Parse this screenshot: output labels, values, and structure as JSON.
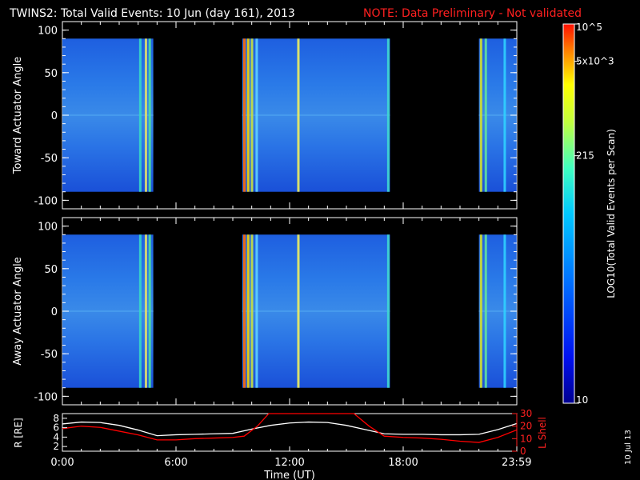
{
  "title": "TWINS2: Total Valid Events: 10 Jun (day 161), 2013",
  "note": "NOTE: Data Preliminary - Not validated",
  "date_stamp": "10 Jul 13",
  "colorbar": {
    "label": "LOG10(Total Valid Events per Scan)",
    "tick_labels": [
      "10",
      "215",
      "5x10^3",
      "10^5"
    ]
  },
  "chart_data": [
    {
      "type": "heatmap",
      "ylabel": "Toward Actuator Angle",
      "ylim": [
        -110,
        110
      ],
      "yticks": [
        100,
        50,
        0,
        -50,
        -100
      ],
      "xlim_hours": [
        0,
        24
      ],
      "angle_range": [
        -90,
        90
      ],
      "data_intervals_hours": [
        [
          0,
          4.8
        ],
        [
          9.5,
          17.3
        ],
        [
          22.0,
          23.99
        ]
      ],
      "bright_bands_hours": [
        {
          "x": 4.05,
          "color": "#36d6c8"
        },
        {
          "x": 4.35,
          "color": "#e0e06a"
        },
        {
          "x": 4.55,
          "color": "#50e0a0"
        },
        {
          "x": 9.55,
          "color": "#ff6a00"
        },
        {
          "x": 9.75,
          "color": "#f4d400"
        },
        {
          "x": 9.95,
          "color": "#c8e040"
        },
        {
          "x": 10.2,
          "color": "#60d0ff"
        },
        {
          "x": 12.4,
          "color": "#f0f060"
        },
        {
          "x": 17.15,
          "color": "#40d8d0"
        },
        {
          "x": 22.05,
          "color": "#d0e030"
        },
        {
          "x": 22.3,
          "color": "#60e0a0"
        },
        {
          "x": 23.3,
          "color": "#30d0ff"
        }
      ]
    },
    {
      "type": "heatmap",
      "ylabel": "Away Actuator Angle",
      "ylim": [
        -110,
        110
      ],
      "yticks": [
        100,
        50,
        0,
        -50,
        -100
      ],
      "xlim_hours": [
        0,
        24
      ],
      "angle_range": [
        -90,
        90
      ],
      "data_intervals_hours": [
        [
          0,
          4.8
        ],
        [
          9.5,
          17.3
        ],
        [
          22.0,
          23.99
        ]
      ],
      "bright_bands_hours": [
        {
          "x": 4.05,
          "color": "#36d6c8"
        },
        {
          "x": 4.35,
          "color": "#e0e06a"
        },
        {
          "x": 4.55,
          "color": "#50e0a0"
        },
        {
          "x": 9.55,
          "color": "#ff6a00"
        },
        {
          "x": 9.75,
          "color": "#f4d400"
        },
        {
          "x": 9.95,
          "color": "#c8e040"
        },
        {
          "x": 10.2,
          "color": "#60d0ff"
        },
        {
          "x": 12.4,
          "color": "#f0f060"
        },
        {
          "x": 17.15,
          "color": "#40d8d0"
        },
        {
          "x": 22.05,
          "color": "#d0e030"
        },
        {
          "x": 22.3,
          "color": "#60e0a0"
        },
        {
          "x": 23.3,
          "color": "#30d0ff"
        }
      ]
    },
    {
      "type": "line",
      "xlabel": "Time (UT)",
      "x_tick_labels": [
        "0:00",
        "6:00",
        "12:00",
        "18:00",
        "23:59"
      ],
      "x_tick_hours": [
        0,
        6,
        12,
        18,
        23.99
      ],
      "ylabel": "R [RE]",
      "y_tick_labels": [
        "2",
        "4",
        "6",
        "8"
      ],
      "ylim": [
        1,
        9
      ],
      "y2label": "L Shell",
      "y2_tick_labels": [
        "0",
        "10",
        "20",
        "30"
      ],
      "y2lim": [
        0,
        30
      ],
      "series": [
        {
          "axis": "left",
          "color": "#ffffff",
          "x": [
            0,
            1,
            2,
            3,
            4,
            5,
            6,
            7,
            8,
            9,
            10,
            11,
            12,
            13,
            14,
            15,
            16,
            17,
            18,
            19,
            20,
            21,
            22,
            23,
            24
          ],
          "y": [
            6.8,
            7.2,
            7.1,
            6.5,
            5.5,
            4.3,
            4.5,
            4.6,
            4.7,
            4.8,
            5.7,
            6.5,
            7.0,
            7.2,
            7.1,
            6.5,
            5.6,
            4.7,
            4.6,
            4.6,
            4.5,
            4.5,
            4.6,
            5.6,
            6.9
          ]
        },
        {
          "axis": "right",
          "color": "#ff0000",
          "x": [
            0,
            1,
            2,
            3,
            4,
            5,
            6,
            7,
            8,
            9,
            9.6,
            10.3,
            10.9,
            15.4,
            16.2,
            17.0,
            18,
            19,
            20,
            21,
            22,
            23,
            24
          ],
          "y": [
            18,
            20,
            19,
            16,
            13,
            9,
            9,
            10,
            10.5,
            11,
            12,
            20,
            30,
            30,
            20,
            12,
            11,
            10.5,
            9.5,
            8,
            7,
            11,
            17
          ]
        }
      ]
    }
  ]
}
